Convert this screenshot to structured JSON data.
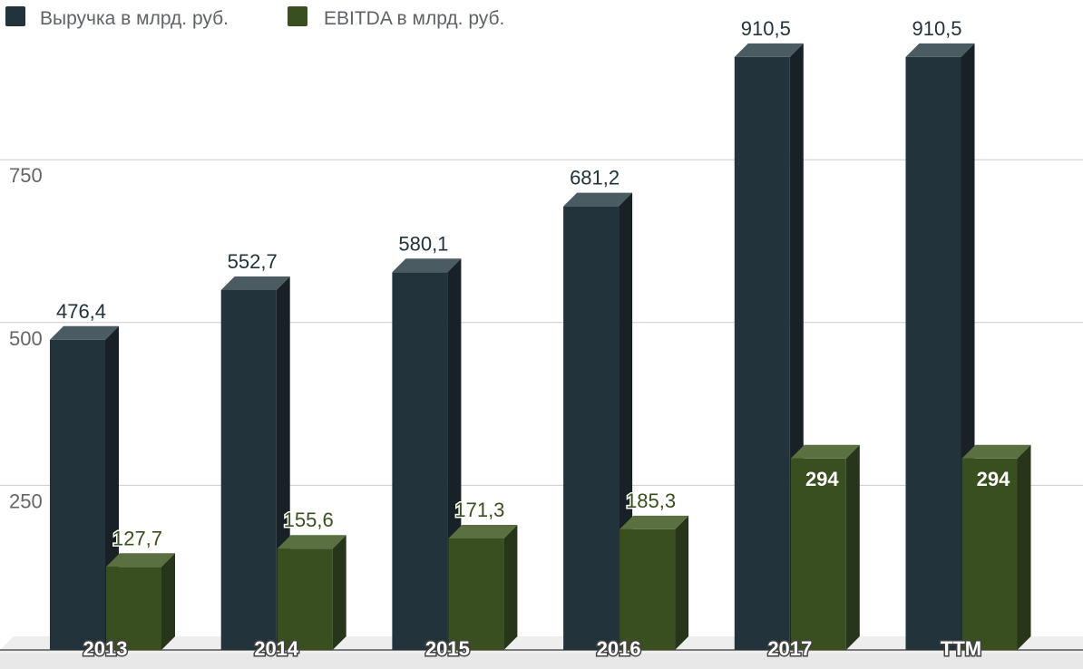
{
  "chart_data": {
    "type": "bar",
    "categories": [
      "2013",
      "2014",
      "2015",
      "2016",
      "2017",
      "TTM"
    ],
    "series": [
      {
        "name": "Выручка в млрд. руб.",
        "values": [
          476.4,
          552.7,
          580.1,
          681.2,
          910.5,
          910.5
        ],
        "labels": [
          "476,4",
          "552,7",
          "580,1",
          "681,2",
          "910,5",
          "910,5"
        ],
        "color": "#22333b",
        "side_color": "#172126",
        "top_color": "#4a5b62"
      },
      {
        "name": "EBITDA в млрд. руб.",
        "values": [
          127.7,
          155.6,
          171.3,
          185.3,
          294,
          294
        ],
        "labels": [
          "127,7",
          "155,6",
          "171,3",
          "185,3",
          "294",
          "294"
        ],
        "color": "#3a4f1f",
        "side_color": "#27361a",
        "top_color": "#5b7041"
      }
    ],
    "y_ticks": [
      "250",
      "500",
      "750"
    ],
    "ylim": [
      0,
      960
    ],
    "grid": true,
    "legend_position": "top-left",
    "style": "3d-column"
  }
}
